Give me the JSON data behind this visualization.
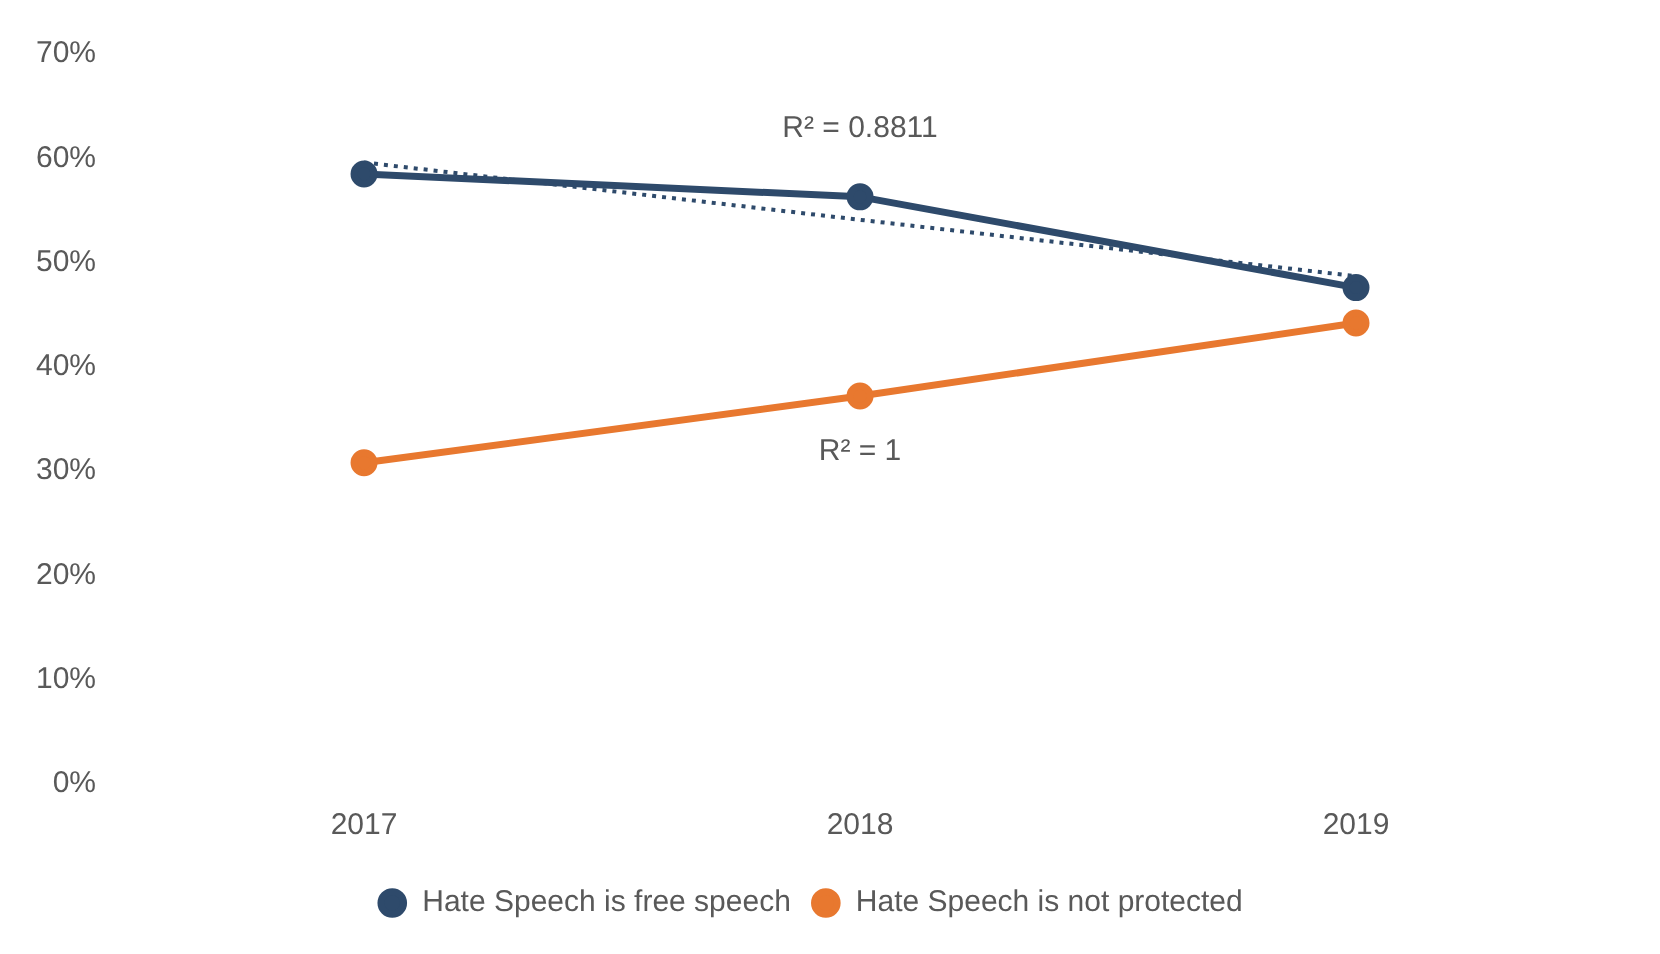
{
  "chart_data": {
    "type": "line",
    "categories": [
      "2017",
      "2018",
      "2019"
    ],
    "series": [
      {
        "name": "Hate Speech is free speech",
        "color": "#2e4a6b",
        "values": [
          58.5,
          56.3,
          47.6
        ],
        "marker": "circle"
      },
      {
        "name": "Hate Speech is not protected",
        "color": "#e8782f",
        "values": [
          30.8,
          37.2,
          44.2
        ],
        "marker": "circle"
      },
      {
        "color": "#2e4a6b",
        "values": [
          59.6,
          54.1,
          48.7
        ],
        "line_style": "dotted",
        "marker": "none"
      }
    ],
    "ylim": [
      0,
      70
    ],
    "yticks": [
      {
        "value": 0,
        "label": "0%"
      },
      {
        "value": 10,
        "label": "10%"
      },
      {
        "value": 20,
        "label": "20%"
      },
      {
        "value": 30,
        "label": "30%"
      },
      {
        "value": 40,
        "label": "40%"
      },
      {
        "value": 50,
        "label": "50%"
      },
      {
        "value": 60,
        "label": "60%"
      },
      {
        "value": 70,
        "label": "70%"
      }
    ],
    "annotations": [
      "R² = 0.8811",
      "R² = 1"
    ],
    "grid": false,
    "legend": "bottom"
  }
}
